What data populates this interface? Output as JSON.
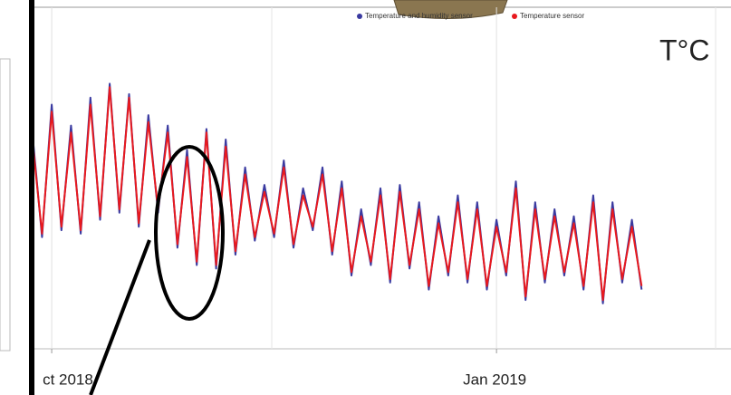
{
  "chart_data": {
    "type": "line",
    "annotation": "T°C",
    "x": [
      -4,
      -2,
      0,
      2,
      4,
      6,
      8,
      10,
      12,
      14,
      16,
      18,
      20,
      22,
      24,
      26,
      28,
      30,
      32,
      34,
      36,
      38,
      40,
      42,
      44,
      46,
      48,
      50,
      52,
      54,
      56,
      58,
      60,
      62,
      64,
      66,
      68,
      70,
      72,
      74,
      76,
      78,
      80,
      82,
      84,
      86,
      88,
      90,
      92,
      94,
      96,
      98,
      100,
      102,
      104,
      106,
      108,
      110,
      112,
      114,
      116,
      118,
      120,
      122
    ],
    "series": [
      {
        "name": "Temperature and humidity sensor",
        "color": "#3a3aa0",
        "values": [
          62,
          32,
          70,
          34,
          64,
          33,
          72,
          37,
          76,
          39,
          73,
          35,
          67,
          39,
          64,
          29,
          57,
          24,
          63,
          23,
          60,
          27,
          52,
          31,
          47,
          32,
          54,
          29,
          46,
          34,
          52,
          27,
          48,
          21,
          40,
          24,
          46,
          19,
          47,
          23,
          42,
          17,
          38,
          21,
          44,
          19,
          42,
          17,
          37,
          21,
          48,
          14,
          42,
          19,
          40,
          21,
          38,
          17,
          44,
          13,
          42,
          19,
          37,
          17
        ]
      },
      {
        "name": "Temperature sensor",
        "color": "#e8191e",
        "values": [
          60,
          33,
          68,
          35,
          62,
          34,
          70,
          38,
          75,
          40,
          72,
          36,
          65,
          40,
          62,
          30,
          55,
          25,
          62,
          24,
          58,
          28,
          50,
          32,
          45,
          33,
          52,
          30,
          44,
          35,
          50,
          28,
          46,
          22,
          38,
          25,
          44,
          20,
          45,
          24,
          40,
          18,
          36,
          22,
          42,
          20,
          40,
          18,
          35,
          22,
          46,
          15,
          40,
          20,
          38,
          22,
          36,
          18,
          42,
          14,
          40,
          20,
          35,
          18
        ]
      }
    ],
    "xlim": [
      -4.7,
      140.5
    ],
    "xticks": [
      {
        "value": 0,
        "label": "ct 2018"
      },
      {
        "value": 92,
        "label": "Jan 2019"
      }
    ],
    "ylim": [
      0,
      100
    ],
    "grid": true
  }
}
